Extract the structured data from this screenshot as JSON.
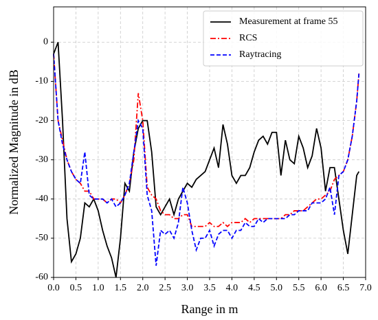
{
  "chart_data": {
    "type": "line",
    "xlabel": "Range in m",
    "ylabel": "Normalized Magnitude in dB",
    "x": [
      0.0,
      0.1,
      0.2,
      0.3,
      0.4,
      0.5,
      0.6,
      0.7,
      0.8,
      0.9,
      1.0,
      1.1,
      1.2,
      1.3,
      1.4,
      1.5,
      1.6,
      1.7,
      1.8,
      1.9,
      2.0,
      2.1,
      2.2,
      2.3,
      2.4,
      2.5,
      2.6,
      2.7,
      2.8,
      2.9,
      3.0,
      3.1,
      3.2,
      3.3,
      3.4,
      3.5,
      3.6,
      3.7,
      3.8,
      3.9,
      4.0,
      4.1,
      4.2,
      4.3,
      4.4,
      4.5,
      4.6,
      4.7,
      4.8,
      4.9,
      5.0,
      5.1,
      5.2,
      5.3,
      5.4,
      5.5,
      5.6,
      5.7,
      5.8,
      5.9,
      6.0,
      6.1,
      6.2,
      6.3,
      6.4,
      6.5,
      6.6,
      6.7,
      6.8,
      6.85
    ],
    "series": [
      {
        "name": "Measurement at frame 55",
        "color": "#000000",
        "style": "solid",
        "values": [
          -3,
          0,
          -20,
          -45,
          -56,
          -54,
          -50,
          -41,
          -42,
          -40,
          -43,
          -48,
          -52,
          -55,
          -60,
          -50,
          -36,
          -38,
          -28,
          -22,
          -20,
          -20,
          -28,
          -42,
          -44,
          -42,
          -40,
          -44,
          -40,
          -38,
          -36,
          -37,
          -35,
          -34,
          -33,
          -30,
          -27,
          -32,
          -21,
          -26,
          -34,
          -36,
          -34,
          -34,
          -32,
          -28,
          -25,
          -24,
          -26,
          -23,
          -23,
          -34,
          -25,
          -30,
          -31,
          -24,
          -27,
          -32,
          -29,
          -22,
          -27,
          -38,
          -32,
          -32,
          -40,
          -48,
          -54,
          -44,
          -34,
          -33
        ]
      },
      {
        "name": "RCS",
        "color": "#ff0000",
        "style": "dashdot",
        "values": [
          -3,
          -20,
          -25,
          -30,
          -33,
          -35,
          -36,
          -38,
          -38,
          -40,
          -40,
          -40,
          -41,
          -40,
          -40,
          -41,
          -39,
          -36,
          -30,
          -13,
          -20,
          -37,
          -39,
          -40,
          -43,
          -44,
          -44,
          -45,
          -45,
          -44,
          -44,
          -47,
          -47,
          -47,
          -47,
          -46,
          -47,
          -47,
          -46,
          -47,
          -46,
          -46,
          -46,
          -45,
          -46,
          -45,
          -45,
          -45,
          -45,
          -45,
          -45,
          -45,
          -44,
          -44,
          -43,
          -43,
          -43,
          -42,
          -41,
          -40,
          -40,
          -39,
          -38,
          -35,
          -34,
          -33,
          -30,
          -24,
          -15,
          -8
        ]
      },
      {
        "name": "Raytracing",
        "color": "#0000ff",
        "style": "dashed",
        "values": [
          -3,
          -20,
          -26,
          -30,
          -33,
          -35,
          -36,
          -28,
          -39,
          -40,
          -40,
          -40,
          -41,
          -40,
          -42,
          -41,
          -39,
          -36,
          -28,
          -20,
          -22,
          -39,
          -43,
          -57,
          -48,
          -49,
          -48,
          -50,
          -46,
          -37,
          -41,
          -48,
          -53,
          -50,
          -50,
          -48,
          -52,
          -49,
          -48,
          -48,
          -50,
          -48,
          -48,
          -46,
          -47,
          -47,
          -45,
          -46,
          -45,
          -45,
          -45,
          -45,
          -45,
          -44,
          -44,
          -43,
          -43,
          -43,
          -41,
          -41,
          -41,
          -40,
          -37,
          -44,
          -34,
          -33,
          -30,
          -24,
          -15,
          -8
        ]
      }
    ],
    "xlim": [
      0,
      7
    ],
    "ylim": [
      -60,
      9
    ],
    "xticks": [
      {
        "value": 0,
        "label": "0.0"
      },
      {
        "value": 0.5,
        "label": "0.5"
      },
      {
        "value": 1,
        "label": "1.0"
      },
      {
        "value": 1.5,
        "label": "1.5"
      },
      {
        "value": 2,
        "label": "2.0"
      },
      {
        "value": 2.5,
        "label": "2.5"
      },
      {
        "value": 3,
        "label": "3.0"
      },
      {
        "value": 3.5,
        "label": "3.5"
      },
      {
        "value": 4,
        "label": "4.0"
      },
      {
        "value": 4.5,
        "label": "4.5"
      },
      {
        "value": 5,
        "label": "5.0"
      },
      {
        "value": 5.5,
        "label": "5.5"
      },
      {
        "value": 6,
        "label": "6.0"
      },
      {
        "value": 6.5,
        "label": "6.5"
      },
      {
        "value": 7,
        "label": "7.0"
      }
    ],
    "yticks": [
      -60,
      -50,
      -40,
      -30,
      -20,
      -10,
      0
    ],
    "grid": true,
    "legend": "upper right"
  }
}
